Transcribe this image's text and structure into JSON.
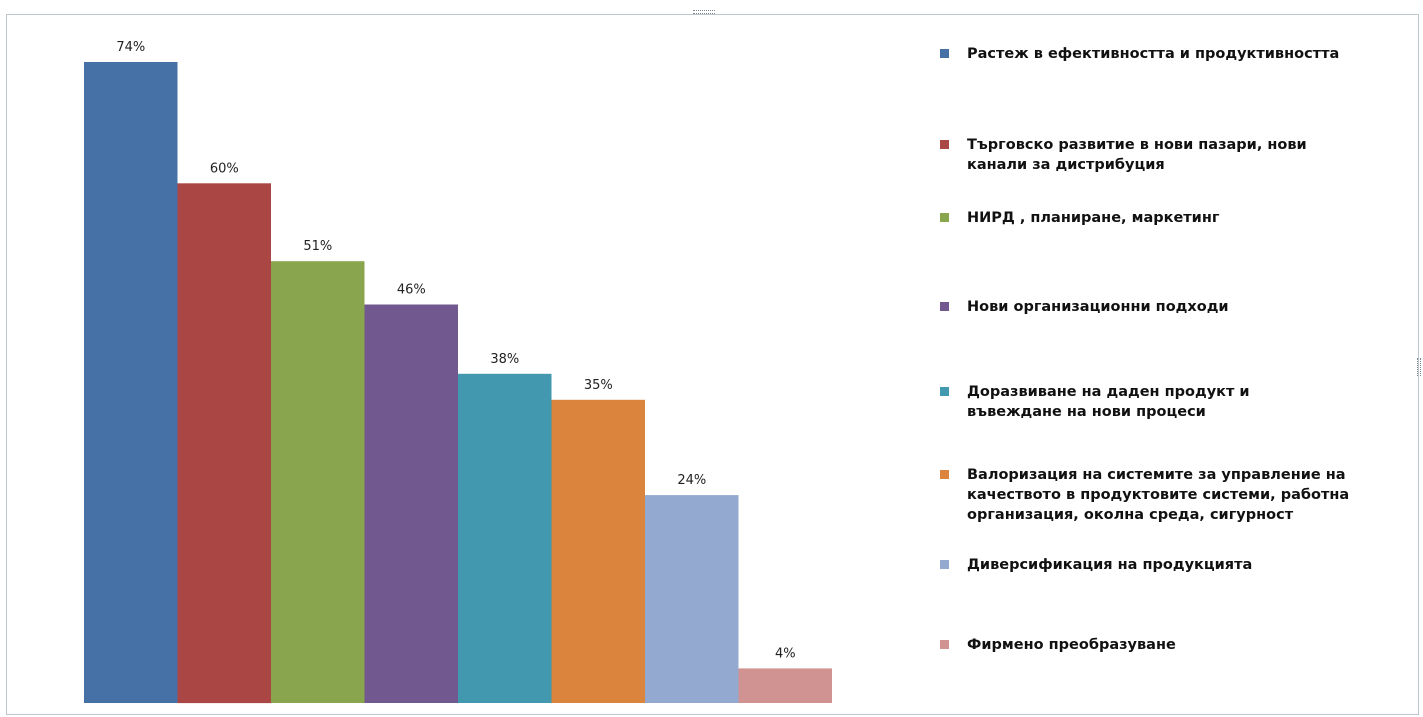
{
  "chart_data": {
    "type": "bar",
    "categories": [
      "Растеж в ефективността и продуктивността",
      "Търговско развитие в нови пазари, нови\nканали за дистрибуция",
      "НИРД , планиране, маркетинг",
      " Нови организационни подходи",
      "Доразвиване на даден продукт и\nвъвеждане на нови процеси",
      "Валоризация на системите за управление на\nкачеството в продуктовите системи, работна\nорганизация, околна среда, сигурност",
      " Диверсификация на продукцията",
      "Фирмено преобразуване"
    ],
    "values": [
      74,
      60,
      51,
      46,
      38,
      35,
      24,
      4
    ],
    "data_labels": [
      "74%",
      "60%",
      "51%",
      "46%",
      "38%",
      "35%",
      "24%",
      "4%"
    ],
    "colors": [
      "#4571a7",
      "#aa4643",
      "#89a54e",
      "#71588f",
      "#4198af",
      "#db843d",
      "#93a9cf",
      "#d19392"
    ],
    "ylim": [
      0,
      80
    ],
    "grid": false,
    "legend_position": "right",
    "title": "",
    "xlabel": "",
    "ylabel": ""
  }
}
